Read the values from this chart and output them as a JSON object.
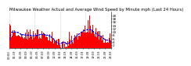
{
  "title": "Milwaukee Weather Actual and Average Wind Speed by Minute mph (Last 24 Hours)",
  "title_fontsize": 3.8,
  "bar_color": "#ff0000",
  "line_color": "#0000ff",
  "background_color": "#ffffff",
  "plot_background": "#ffffff",
  "grid_color": "#b0b0b0",
  "ylim": [
    0,
    22
  ],
  "yticks": [
    2,
    4,
    6,
    8,
    10,
    12,
    14,
    16,
    18,
    20
  ],
  "ytick_fontsize": 3.0,
  "xtick_fontsize": 2.6,
  "n_points": 1440,
  "n_gridlines": 5,
  "legend_fontsize": 3.0
}
